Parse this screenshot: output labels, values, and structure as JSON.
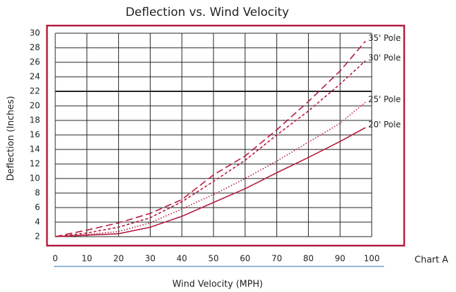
{
  "chart_data": {
    "type": "line",
    "title": "Deflection vs. Wind Velocity",
    "x_label": "Wind Velocity (MPH)",
    "y_label": "Deflection (Inches)",
    "annotation": "Chart A",
    "x": [
      0,
      10,
      20,
      30,
      40,
      50,
      60,
      70,
      80,
      90,
      98
    ],
    "series": [
      {
        "name": "20' Pole",
        "color": "#b5193b",
        "style": "solid",
        "values": [
          2,
          2.2,
          2.4,
          3.3,
          4.8,
          6.7,
          8.6,
          10.8,
          12.9,
          15.1,
          17.0
        ]
      },
      {
        "name": "25' Pole",
        "color": "#b5193b",
        "style": "dotted",
        "values": [
          2,
          2.3,
          2.7,
          3.9,
          5.8,
          7.8,
          10,
          12.4,
          15,
          17.6,
          20.5
        ]
      },
      {
        "name": "30' Pole",
        "color": "#b5193b",
        "style": "dashed",
        "values": [
          2,
          2.5,
          3.3,
          4.6,
          6.8,
          9.6,
          12.5,
          16,
          19.3,
          23,
          26.2
        ]
      },
      {
        "name": "35' Pole",
        "color": "#b5193b",
        "style": "long-dashed",
        "values": [
          2,
          2.9,
          3.9,
          5.2,
          7.1,
          10.5,
          13.1,
          16.7,
          20.6,
          24.8,
          28.9
        ]
      }
    ],
    "xlim": [
      0,
      100
    ],
    "xticks": [
      0,
      10,
      20,
      30,
      40,
      50,
      60,
      70,
      80,
      90,
      100
    ],
    "ylim": [
      2,
      30
    ],
    "yticks": [
      2,
      4,
      6,
      8,
      10,
      12,
      14,
      16,
      18,
      20,
      22,
      24,
      26,
      28,
      30
    ],
    "highlight_ytick": 22,
    "grid": true
  }
}
